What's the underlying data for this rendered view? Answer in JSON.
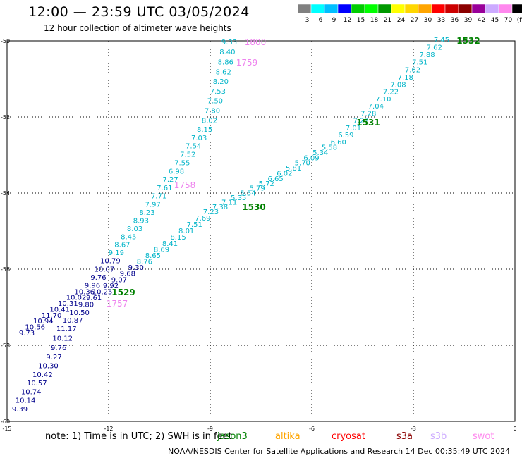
{
  "header": {
    "title": "12:00 — 23:59 UTC 03/05/2024",
    "subtitle": "12 hour collection of altimeter wave heights"
  },
  "legend": {
    "bins": [
      {
        "label": "3",
        "color": "#808080"
      },
      {
        "label": "6",
        "color": "#00ffff"
      },
      {
        "label": "9",
        "color": "#00bfff"
      },
      {
        "label": "12",
        "color": "#0000ff"
      },
      {
        "label": "15",
        "color": "#00cc00"
      },
      {
        "label": "18",
        "color": "#00ff00"
      },
      {
        "label": "21",
        "color": "#009900"
      },
      {
        "label": "24",
        "color": "#ffff00"
      },
      {
        "label": "27",
        "color": "#ffd700"
      },
      {
        "label": "30",
        "color": "#ffa500"
      },
      {
        "label": "33",
        "color": "#ff0000"
      },
      {
        "label": "36",
        "color": "#cc0000"
      },
      {
        "label": "39",
        "color": "#8b0000"
      },
      {
        "label": "42",
        "color": "#990099"
      },
      {
        "label": "45",
        "color": "#ccaaff"
      },
      {
        "label": "70",
        "color": "#ff88ee"
      },
      {
        "label": "(ft)",
        "color": "#000000"
      }
    ]
  },
  "map": {
    "x_ticks": [
      "-15",
      "-12",
      "-9",
      "-6",
      "-3",
      "0"
    ],
    "y_ticks": [
      "-50",
      "-52",
      "-54",
      "-56",
      "-58",
      "-60"
    ]
  },
  "tracks": {
    "track_a": {
      "color": "#00b4c8",
      "dark_color": "#00008b",
      "values": [
        "9.33",
        "8.40",
        "8.86",
        "8.62",
        "8.20",
        "7.53",
        "7.50",
        "7.80",
        "8.02",
        "8.15",
        "7.03",
        "7.54",
        "7.52",
        "7.55",
        "6.98",
        "7.27",
        "7.61",
        "7.71",
        "7.97",
        "8.23",
        "8.93",
        "8.03",
        "8.45",
        "8.67",
        "9.19",
        "10.79",
        "10.07",
        "9.76",
        "9.96",
        "10.36",
        "10.02",
        "10.31",
        "10.41",
        "11.70",
        "10.94",
        "10.56",
        "9.73"
      ]
    },
    "track_b": {
      "color": "#00b4c8",
      "values": [
        "7.45",
        "7.62",
        "7.88",
        "7.51",
        "7.62",
        "7.18",
        "7.08",
        "7.22",
        "7.10",
        "7.04",
        "7.28",
        "7.27",
        "7.01",
        "6.59",
        "6.60",
        "5.58",
        "5.34",
        "6.09",
        "5.70",
        "5.81",
        "6.02",
        "6.65",
        "5.72",
        "5.79",
        "5.54",
        "5.35",
        "7.11",
        "7.38",
        "7.23",
        "7.69",
        "7.51",
        "8.01",
        "8.15",
        "8.41",
        "8.69",
        "8.65",
        "8.76",
        "9.30",
        "9.68",
        "9.07",
        "9.92",
        "10.25",
        "9.61",
        "9.80",
        "10.50",
        "10.87",
        "11.17",
        "10.12",
        "9.76",
        "9.27",
        "10.30",
        "10.42",
        "10.57",
        "10.74",
        "10.14",
        "9.39"
      ]
    },
    "time_labels": [
      {
        "text": "1800",
        "color": "#ee82ee"
      },
      {
        "text": "1759",
        "color": "#ee82ee"
      },
      {
        "text": "1758",
        "color": "#ee82ee"
      },
      {
        "text": "1757",
        "color": "#ee82ee"
      },
      {
        "text": "1532",
        "color": "#008000"
      },
      {
        "text": "1531",
        "color": "#008000"
      },
      {
        "text": "1530",
        "color": "#008000"
      },
      {
        "text": "1529",
        "color": "#008000"
      }
    ]
  },
  "footer": {
    "note": "note:  1) Time is in UTC; 2) SWH is in feet",
    "satellites": [
      {
        "name": "jason3",
        "color": "#008000"
      },
      {
        "name": "altika",
        "color": "#ffa500"
      },
      {
        "name": "cryosat",
        "color": "#ff0000"
      },
      {
        "name": "s3a",
        "color": "#8b0000"
      },
      {
        "name": "s3b",
        "color": "#ccaaff"
      },
      {
        "name": "swot",
        "color": "#ff88ee"
      }
    ],
    "credit": "NOAA/NESDIS Center for Satellite Applications and Research    14 Dec 00:35:49 UTC 2024"
  }
}
